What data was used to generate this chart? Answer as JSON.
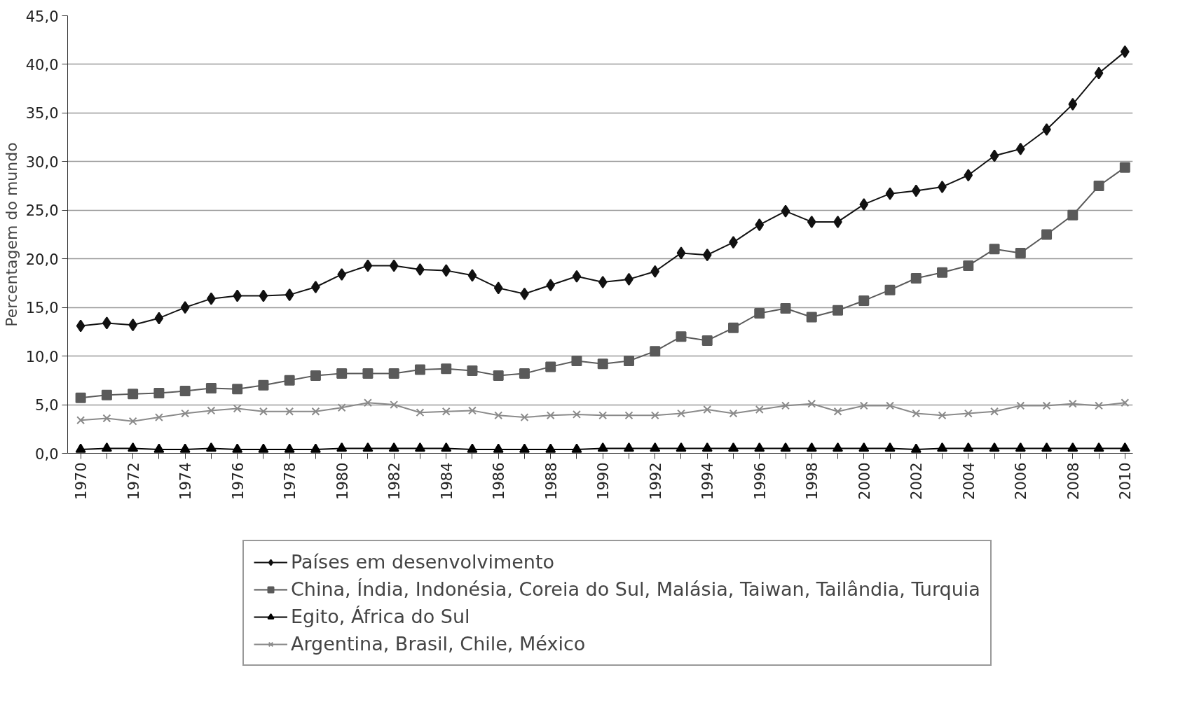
{
  "chart_data": {
    "type": "line",
    "ylabel": "Percentagem do mundo",
    "x": [
      1970,
      1971,
      1972,
      1973,
      1974,
      1975,
      1976,
      1977,
      1978,
      1979,
      1980,
      1981,
      1982,
      1983,
      1984,
      1985,
      1986,
      1987,
      1988,
      1989,
      1990,
      1991,
      1992,
      1993,
      1994,
      1995,
      1996,
      1997,
      1998,
      1999,
      2000,
      2001,
      2002,
      2003,
      2004,
      2005,
      2006,
      2007,
      2008,
      2009,
      2010
    ],
    "series": [
      {
        "name": "Países em desenvolvimento",
        "color": "#111111",
        "marker": "diamond",
        "values": [
          13.1,
          13.4,
          13.2,
          13.9,
          15.0,
          15.9,
          16.2,
          16.2,
          16.3,
          17.1,
          18.4,
          19.3,
          19.3,
          18.9,
          18.8,
          18.3,
          17.0,
          16.4,
          17.3,
          18.2,
          17.6,
          17.9,
          18.7,
          20.6,
          20.4,
          21.7,
          23.5,
          24.9,
          23.8,
          23.8,
          25.6,
          26.7,
          27.0,
          27.4,
          28.6,
          30.6,
          31.3,
          33.3,
          35.9,
          39.1,
          41.3
        ]
      },
      {
        "name": "China, Índia, Indonésia, Coreia do Sul, Malásia, Taiwan, Tailândia, Turquia",
        "color": "#5a5a5a",
        "marker": "square",
        "values": [
          5.7,
          6.0,
          6.1,
          6.2,
          6.4,
          6.7,
          6.6,
          7.0,
          7.5,
          8.0,
          8.2,
          8.2,
          8.2,
          8.6,
          8.7,
          8.5,
          8.0,
          8.2,
          8.9,
          9.5,
          9.2,
          9.5,
          10.5,
          12.0,
          11.6,
          12.9,
          14.4,
          14.9,
          14.0,
          14.7,
          15.7,
          16.8,
          18.0,
          18.6,
          19.3,
          21.0,
          20.6,
          22.5,
          24.5,
          27.5,
          29.4
        ]
      },
      {
        "name": "Egito, África do Sul",
        "color": "#000000",
        "marker": "triangle",
        "values": [
          0.4,
          0.5,
          0.5,
          0.4,
          0.4,
          0.5,
          0.4,
          0.4,
          0.4,
          0.4,
          0.5,
          0.5,
          0.5,
          0.5,
          0.5,
          0.4,
          0.4,
          0.4,
          0.4,
          0.4,
          0.5,
          0.5,
          0.5,
          0.5,
          0.5,
          0.5,
          0.5,
          0.5,
          0.5,
          0.5,
          0.5,
          0.5,
          0.4,
          0.5,
          0.5,
          0.5,
          0.5,
          0.5,
          0.5,
          0.5,
          0.5
        ]
      },
      {
        "name": "Argentina, Brasil, Chile, México",
        "color": "#8a8a8a",
        "marker": "cross",
        "values": [
          3.4,
          3.6,
          3.3,
          3.7,
          4.1,
          4.4,
          4.6,
          4.3,
          4.3,
          4.3,
          4.7,
          5.2,
          5.0,
          4.2,
          4.3,
          4.4,
          3.9,
          3.7,
          3.9,
          4.0,
          3.9,
          3.9,
          3.9,
          4.1,
          4.5,
          4.1,
          4.5,
          4.9,
          5.1,
          4.3,
          4.9,
          4.9,
          4.1,
          3.9,
          4.1,
          4.3,
          4.9,
          4.9,
          5.1,
          4.9,
          5.2
        ]
      }
    ],
    "xlim": [
      1969.5,
      2010.3
    ],
    "xticks": [
      1970,
      {
        "value": 1971,
        "label": null
      },
      1972,
      {
        "value": 1973,
        "label": null
      },
      1974,
      {
        "value": 1975,
        "label": null
      },
      1976,
      {
        "value": 1977,
        "label": null
      },
      1978,
      {
        "value": 1979,
        "label": null
      },
      1980,
      {
        "value": 1981,
        "label": null
      },
      1982,
      {
        "value": 1983,
        "label": null
      },
      1984,
      {
        "value": 1985,
        "label": null
      },
      1986,
      {
        "value": 1987,
        "label": null
      },
      1988,
      {
        "value": 1989,
        "label": null
      },
      1990,
      {
        "value": 1991,
        "label": null
      },
      1992,
      {
        "value": 1993,
        "label": null
      },
      1994,
      {
        "value": 1995,
        "label": null
      },
      1996,
      {
        "value": 1997,
        "label": null
      },
      1998,
      {
        "value": 1999,
        "label": null
      },
      2000,
      {
        "value": 2001,
        "label": null
      },
      2002,
      {
        "value": 2003,
        "label": null
      },
      2004,
      {
        "value": 2005,
        "label": null
      },
      2006,
      {
        "value": 2007,
        "label": null
      },
      2008,
      {
        "value": 2009,
        "label": null
      },
      2010
    ],
    "ylim": [
      0,
      45
    ],
    "yticks": [
      {
        "value": 0,
        "label": "0,0"
      },
      {
        "value": 5,
        "label": "5,0"
      },
      {
        "value": 10,
        "label": "10,0"
      },
      {
        "value": 15,
        "label": "15,0"
      },
      {
        "value": 20,
        "label": "20,0"
      },
      {
        "value": 25,
        "label": "25,0"
      },
      {
        "value": 30,
        "label": "30,0"
      },
      {
        "value": 35,
        "label": "35,0"
      },
      {
        "value": 40,
        "label": "40,0"
      },
      {
        "value": 45,
        "label": "45,0"
      }
    ],
    "grid": "y",
    "legend": "bottom"
  }
}
